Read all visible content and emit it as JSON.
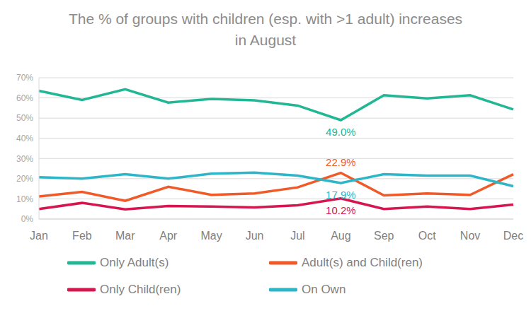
{
  "chart_data": {
    "type": "line",
    "title": "The % of groups with children (esp. with >1 adult) increases in August",
    "categories": [
      "Jan",
      "Feb",
      "Mar",
      "Apr",
      "May",
      "Jun",
      "Jul",
      "Aug",
      "Sep",
      "Oct",
      "Nov",
      "Dec"
    ],
    "series": [
      {
        "name": "Only Adult(s)",
        "color": "#21b795",
        "values": [
          63.5,
          59.0,
          64.3,
          57.7,
          59.5,
          58.8,
          56.2,
          49.0,
          61.3,
          59.8,
          61.3,
          54.3
        ],
        "value_labels": [
          null,
          null,
          null,
          null,
          null,
          null,
          null,
          "49.0%",
          null,
          null,
          null,
          null
        ]
      },
      {
        "name": "Adult(s) and Child(ren)",
        "color": "#f05a28",
        "values": [
          11.2,
          13.5,
          9.0,
          16.0,
          12.0,
          12.7,
          15.7,
          22.9,
          11.7,
          12.7,
          12.0,
          22.2
        ],
        "value_labels": [
          null,
          null,
          null,
          null,
          null,
          null,
          null,
          "22.9%",
          null,
          null,
          null,
          null
        ]
      },
      {
        "name": "Only Child(ren)",
        "color": "#d6164e",
        "values": [
          5.0,
          8.0,
          4.8,
          6.5,
          6.2,
          5.8,
          6.8,
          10.2,
          5.0,
          6.2,
          5.0,
          7.2
        ],
        "value_labels": [
          null,
          null,
          null,
          null,
          null,
          null,
          null,
          "10.2%",
          null,
          null,
          null,
          null
        ]
      },
      {
        "name": "On Own",
        "color": "#2db5c8",
        "values": [
          20.7,
          20.0,
          22.2,
          20.0,
          22.5,
          23.0,
          21.5,
          17.9,
          22.2,
          21.5,
          21.5,
          16.3
        ],
        "value_labels": [
          null,
          null,
          null,
          null,
          null,
          null,
          null,
          "17.9%",
          null,
          null,
          null,
          null
        ]
      }
    ],
    "ylim": [
      0,
      70
    ],
    "yticks": [
      {
        "value": 0,
        "label": "0%"
      },
      {
        "value": 10,
        "label": "10%"
      },
      {
        "value": 20,
        "label": "20%"
      },
      {
        "value": 30,
        "label": "30%"
      },
      {
        "value": 40,
        "label": "40%"
      },
      {
        "value": 50,
        "label": "50%"
      },
      {
        "value": 60,
        "label": "60%"
      },
      {
        "value": 70,
        "label": "70%"
      }
    ],
    "grid": true,
    "legend": "bottom",
    "data_labels": true
  }
}
